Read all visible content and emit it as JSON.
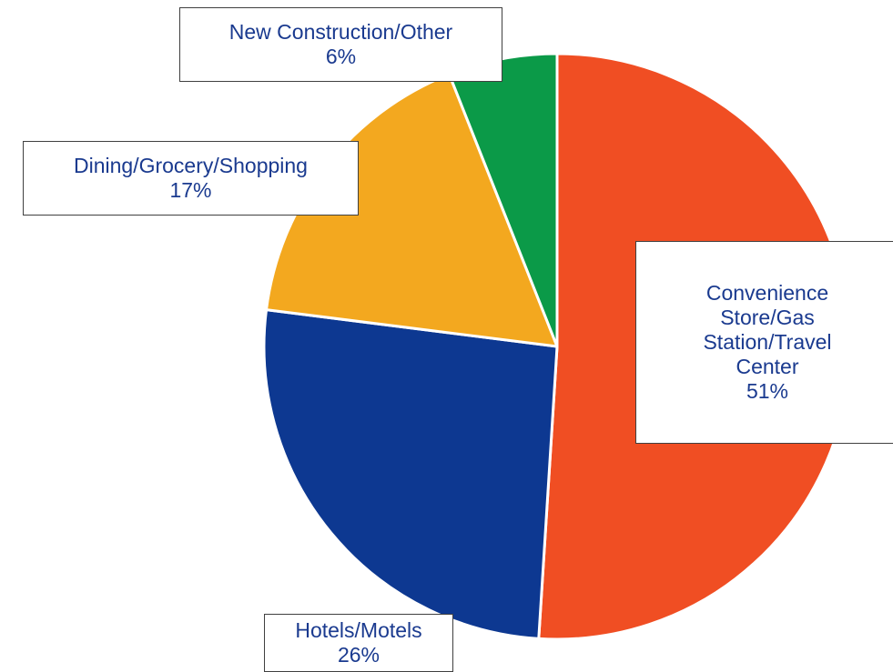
{
  "chart_data": {
    "type": "pie",
    "categories": [
      "Convenience Store/Gas Station/Travel Center",
      "Hotels/Motels",
      "Dining/Grocery/Shopping",
      "New Construction/Other"
    ],
    "values": [
      51,
      26,
      17,
      6
    ],
    "value_labels": [
      "51%",
      "26%",
      "17%",
      "6%"
    ],
    "colors": [
      "#f04e23",
      "#0d3891",
      "#f3a81f",
      "#0b9a48"
    ]
  }
}
